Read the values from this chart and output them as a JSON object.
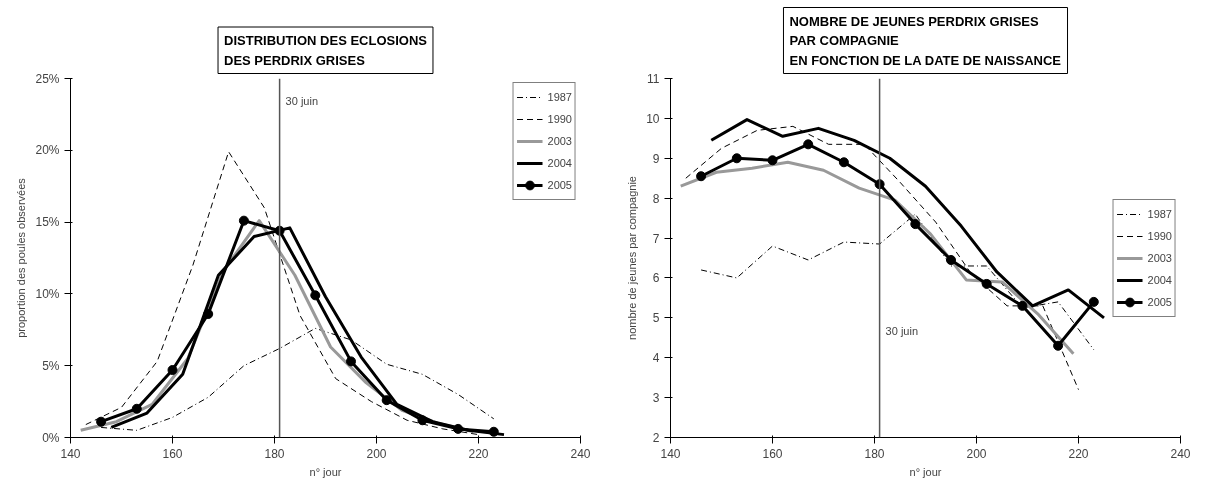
{
  "chart_data": [
    {
      "type": "line",
      "title": "DISTRIBUTION DES ECLOSIONS\nDES PERDRIX GRISES",
      "xlabel": "n° jour",
      "ylabel": "proportion des poules observées",
      "xlim": [
        140,
        240
      ],
      "xticks": [
        140,
        160,
        180,
        200,
        220,
        240
      ],
      "ylim": [
        0,
        25
      ],
      "yticks": [
        {
          "value": 0,
          "label": "0%"
        },
        {
          "value": 5,
          "label": "5%"
        },
        {
          "value": 10,
          "label": "10%"
        },
        {
          "value": 15,
          "label": "15%"
        },
        {
          "value": 20,
          "label": "20%"
        },
        {
          "value": 25,
          "label": "25%"
        }
      ],
      "grid": false,
      "legend": "top right",
      "ref_lines": [
        {
          "axis": "x",
          "value": 181,
          "label": "30 juin"
        }
      ],
      "series": [
        {
          "name": "1987",
          "color": "#000000",
          "line_style": "dotted",
          "marker": "none",
          "x": [
            146,
            153,
            160,
            167,
            174,
            181,
            188,
            195,
            202,
            209,
            216,
            223
          ],
          "values": [
            0.7,
            0.5,
            1.4,
            2.8,
            5.0,
            6.2,
            7.6,
            6.8,
            5.1,
            4.4,
            3.0,
            1.3
          ]
        },
        {
          "name": "1990",
          "color": "#000000",
          "line_style": "dashed",
          "marker": "none",
          "x": [
            143,
            150,
            157,
            164,
            171,
            178,
            185,
            192,
            199,
            206,
            213,
            220
          ],
          "values": [
            0.9,
            2.1,
            5.3,
            12.0,
            19.9,
            16.0,
            8.5,
            4.1,
            2.5,
            1.2,
            0.6,
            0.2
          ]
        },
        {
          "name": "2003",
          "color": "#999999",
          "line_style": "solid",
          "marker": "none",
          "x": [
            142,
            149,
            156,
            163,
            170,
            177,
            184,
            191,
            198,
            205,
            212,
            219
          ],
          "values": [
            0.5,
            1.1,
            2.3,
            5.5,
            11.6,
            15.1,
            11.3,
            6.3,
            3.8,
            1.9,
            1.0,
            0.4
          ]
        },
        {
          "name": "2004",
          "color": "#000000",
          "line_style": "solid",
          "marker": "none",
          "x": [
            148,
            155,
            162,
            169,
            176,
            183,
            190,
            197,
            204,
            211,
            218,
            225
          ],
          "values": [
            0.7,
            1.7,
            4.4,
            11.3,
            14.0,
            14.6,
            9.8,
            5.6,
            2.3,
            1.1,
            0.5,
            0.2
          ]
        },
        {
          "name": "2005",
          "color": "#000000",
          "line_style": "solid",
          "marker": "circle",
          "x": [
            146,
            153,
            160,
            167,
            174,
            181,
            188,
            195,
            202,
            209,
            216,
            223
          ],
          "values": [
            1.1,
            2.0,
            4.7,
            8.6,
            15.1,
            14.4,
            9.9,
            5.3,
            2.6,
            1.2,
            0.6,
            0.4
          ]
        }
      ]
    },
    {
      "type": "line",
      "title": "NOMBRE DE JEUNES PERDRIX GRISES\nPAR COMPAGNIE\nEN FONCTION DE LA DATE DE NAISSANCE",
      "xlabel": "n° jour",
      "ylabel": "nombre de jeunes par compagnie",
      "xlim": [
        140,
        240
      ],
      "xticks": [
        140,
        160,
        180,
        200,
        220,
        240
      ],
      "ylim": [
        2,
        11
      ],
      "yticks": [
        2,
        3,
        4,
        5,
        6,
        7,
        8,
        9,
        10,
        11
      ],
      "grid": false,
      "legend": "right",
      "ref_lines": [
        {
          "axis": "x",
          "value": 181,
          "label": "30 juin"
        }
      ],
      "series": [
        {
          "name": "1987",
          "color": "#000000",
          "line_style": "dotted",
          "marker": "none",
          "x": [
            146,
            153,
            160,
            167,
            174,
            181,
            188,
            195,
            202,
            209,
            216,
            223
          ],
          "values": [
            6.2,
            6.0,
            6.8,
            6.45,
            6.9,
            6.85,
            7.6,
            6.3,
            6.3,
            5.25,
            5.4,
            4.2
          ]
        },
        {
          "name": "1990",
          "color": "#000000",
          "line_style": "dashed",
          "marker": "none",
          "x": [
            143,
            150,
            157,
            164,
            171,
            178,
            185,
            192,
            199,
            206,
            213,
            220
          ],
          "values": [
            8.5,
            9.25,
            9.7,
            9.8,
            9.35,
            9.35,
            8.4,
            7.4,
            6.1,
            5.3,
            5.3,
            3.2
          ]
        },
        {
          "name": "2003",
          "color": "#999999",
          "line_style": "solid",
          "marker": "none",
          "x": [
            142,
            149,
            156,
            163,
            170,
            177,
            184,
            191,
            198,
            205,
            212,
            219
          ],
          "values": [
            8.3,
            8.65,
            8.75,
            8.9,
            8.7,
            8.25,
            7.95,
            7.1,
            5.95,
            5.9,
            5.1,
            4.1
          ]
        },
        {
          "name": "2004",
          "color": "#000000",
          "line_style": "solid",
          "marker": "none",
          "x": [
            148,
            155,
            162,
            169,
            176,
            183,
            190,
            197,
            204,
            211,
            218,
            225
          ],
          "values": [
            9.45,
            9.97,
            9.55,
            9.75,
            9.45,
            9.0,
            8.3,
            7.3,
            6.15,
            5.3,
            5.7,
            5.0
          ]
        },
        {
          "name": "2005",
          "color": "#000000",
          "line_style": "solid",
          "marker": "circle",
          "x": [
            146,
            153,
            160,
            167,
            174,
            181,
            188,
            195,
            202,
            209,
            216,
            223
          ],
          "values": [
            8.55,
            9.0,
            8.95,
            9.35,
            8.9,
            8.35,
            7.35,
            6.45,
            5.85,
            5.3,
            4.3,
            5.4
          ]
        }
      ]
    }
  ]
}
